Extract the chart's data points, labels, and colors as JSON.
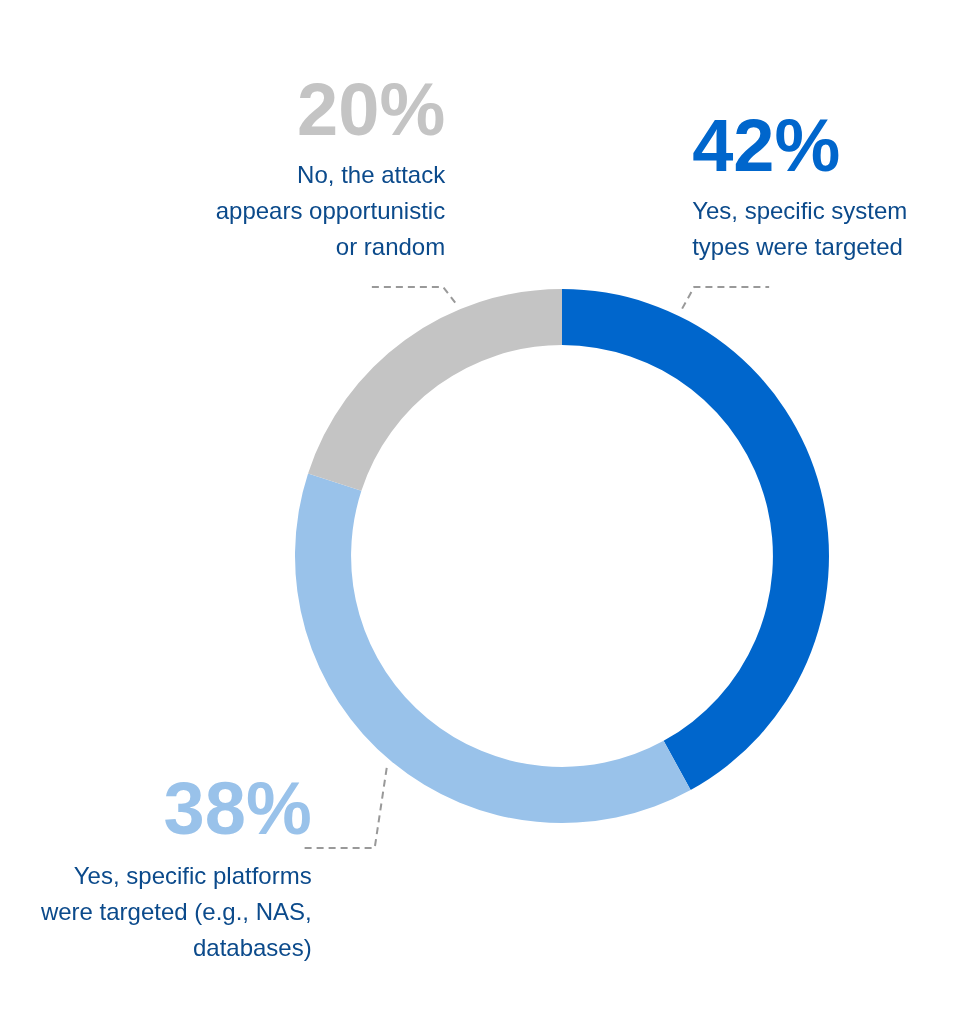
{
  "chart_data": {
    "type": "donut",
    "categories": [
      "Yes, specific system types were targeted",
      "Yes, specific platforms were targeted (e.g., NAS, databases)",
      "No, the attack appears opportunistic or random"
    ],
    "values": [
      42,
      38,
      20
    ],
    "colors": [
      "#0066cc",
      "#99c2ea",
      "#c4c4c4"
    ],
    "value_labels": [
      "42%",
      "38%",
      "20%"
    ],
    "legend": false
  }
}
